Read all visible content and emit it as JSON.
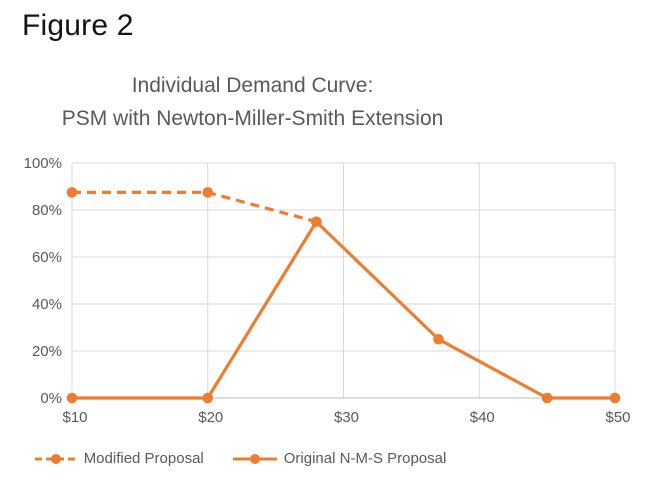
{
  "figure_label": "Figure 2",
  "colors": {
    "series": "#ED7D31",
    "gridline": "#D9D9D9",
    "axis_line": "#BFBFBF",
    "axis_text": "#595959",
    "title_text": "#595959",
    "figure_label_color": "#141414"
  },
  "chart_data": {
    "type": "line",
    "title": "Individual Demand Curve:",
    "subtitle": "PSM with Newton-Miller-Smith Extension",
    "xlabel": "",
    "ylabel": "",
    "xlim": [
      10,
      50
    ],
    "ylim": [
      0,
      100
    ],
    "grid": true,
    "legend_position": "bottom",
    "x_ticks": [
      "$10",
      "$20",
      "$30",
      "$40",
      "$50"
    ],
    "x_tick_values": [
      10,
      20,
      30,
      40,
      50
    ],
    "y_ticks": [
      "0%",
      "20%",
      "40%",
      "60%",
      "80%",
      "100%"
    ],
    "y_tick_values": [
      0,
      20,
      40,
      60,
      80,
      100
    ],
    "series": [
      {
        "id": "modified-proposal",
        "name": "Modified Proposal",
        "style": "dashed",
        "color": "#ED7D31",
        "points": [
          {
            "x": 10,
            "y": 87.5
          },
          {
            "x": 20,
            "y": 87.5
          },
          {
            "x": 28,
            "y": 75
          }
        ]
      },
      {
        "id": "original-nms-proposal",
        "name": "Original N-M-S Proposal",
        "style": "solid",
        "color": "#ED7D31",
        "points": [
          {
            "x": 10,
            "y": 0
          },
          {
            "x": 20,
            "y": 0
          },
          {
            "x": 28,
            "y": 75
          },
          {
            "x": 37,
            "y": 25
          },
          {
            "x": 45,
            "y": 0
          },
          {
            "x": 50,
            "y": 0
          }
        ]
      }
    ]
  }
}
